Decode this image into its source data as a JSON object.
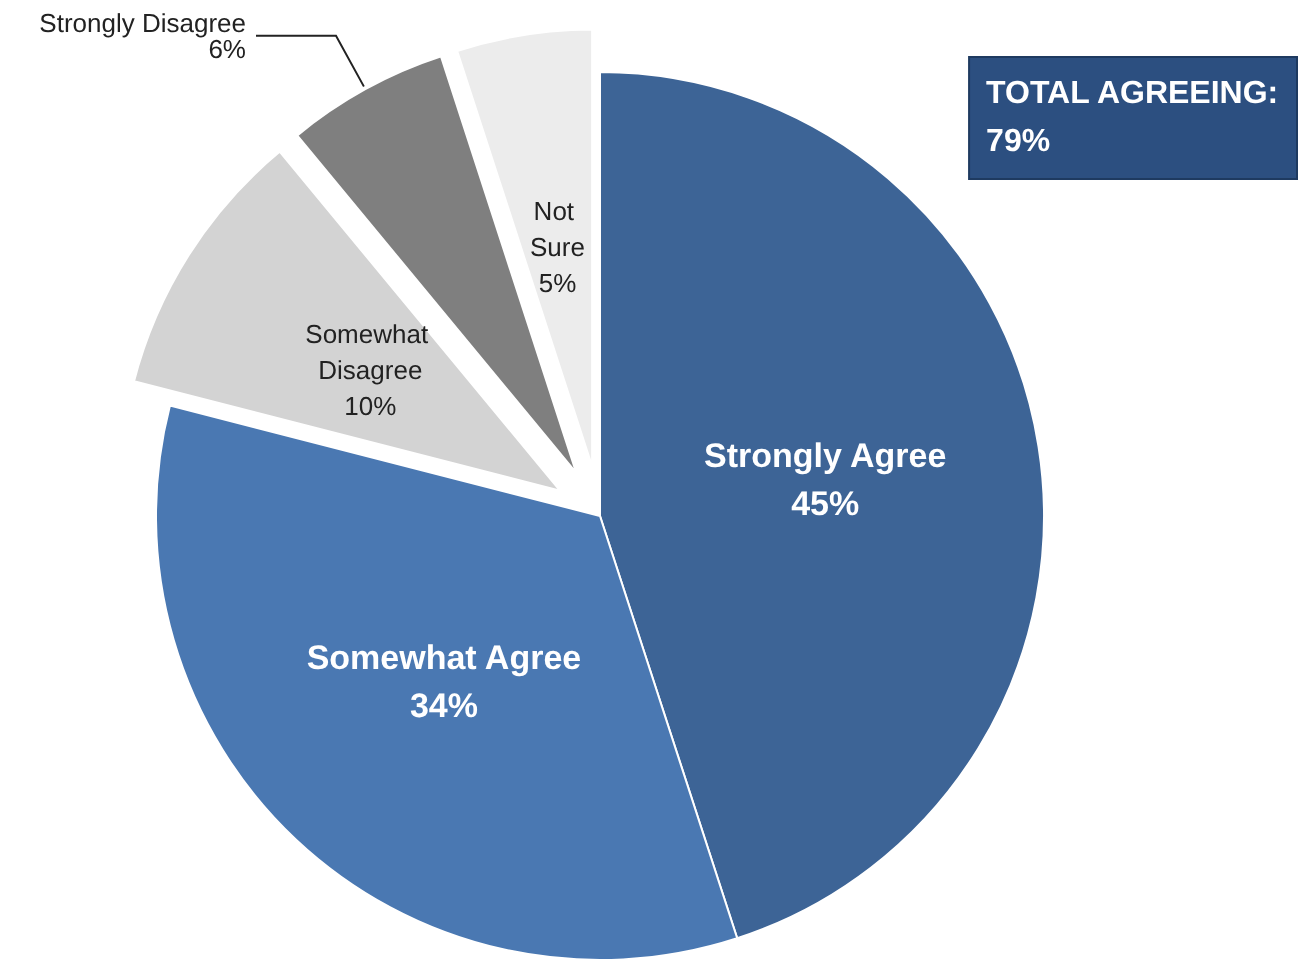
{
  "chart_data": {
    "type": "pie",
    "categories": [
      "Strongly Agree",
      "Somewhat Agree",
      "Somewhat Disagree",
      "Strongly Disagree",
      "Not Sure"
    ],
    "values": [
      45,
      34,
      10,
      6,
      5
    ],
    "value_labels": [
      "45%",
      "34%",
      "10%",
      "6%",
      "5%"
    ],
    "colors": [
      "#3d6496",
      "#4a78b2",
      "#d3d3d3",
      "#7f7f7f",
      "#ececec"
    ],
    "annotations": [
      "TOTAL AGREEING:\n79%"
    ],
    "legend": false
  }
}
